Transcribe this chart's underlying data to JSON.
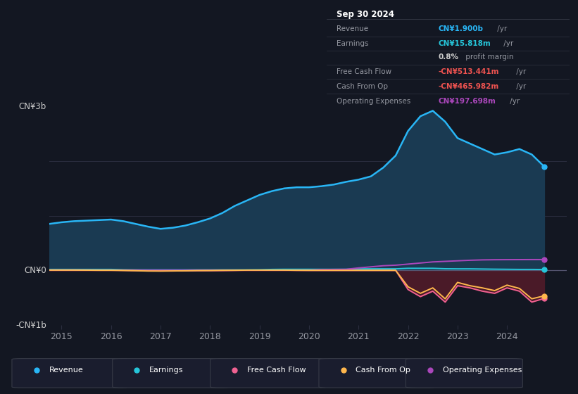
{
  "bg_color": "#131722",
  "plot_bg_color": "#131722",
  "years": [
    2014.75,
    2015.0,
    2015.25,
    2015.5,
    2015.75,
    2016.0,
    2016.25,
    2016.5,
    2016.75,
    2017.0,
    2017.25,
    2017.5,
    2017.75,
    2018.0,
    2018.25,
    2018.5,
    2018.75,
    2019.0,
    2019.25,
    2019.5,
    2019.75,
    2020.0,
    2020.25,
    2020.5,
    2020.75,
    2021.0,
    2021.25,
    2021.5,
    2021.75,
    2022.0,
    2022.25,
    2022.5,
    2022.75,
    2023.0,
    2023.25,
    2023.5,
    2023.75,
    2024.0,
    2024.25,
    2024.5,
    2024.75
  ],
  "revenue": [
    0.85,
    0.88,
    0.9,
    0.91,
    0.92,
    0.93,
    0.9,
    0.85,
    0.8,
    0.76,
    0.78,
    0.82,
    0.88,
    0.95,
    1.05,
    1.18,
    1.28,
    1.38,
    1.45,
    1.5,
    1.52,
    1.52,
    1.54,
    1.57,
    1.62,
    1.66,
    1.72,
    1.88,
    2.1,
    2.55,
    2.82,
    2.92,
    2.72,
    2.42,
    2.32,
    2.22,
    2.12,
    2.16,
    2.22,
    2.12,
    1.9
  ],
  "earnings": [
    0.018,
    0.018,
    0.018,
    0.018,
    0.018,
    0.018,
    0.012,
    0.01,
    0.01,
    0.01,
    0.01,
    0.01,
    0.01,
    0.01,
    0.01,
    0.01,
    0.01,
    0.012,
    0.018,
    0.02,
    0.02,
    0.02,
    0.02,
    0.02,
    0.02,
    0.028,
    0.028,
    0.028,
    0.028,
    0.038,
    0.038,
    0.038,
    0.03,
    0.028,
    0.028,
    0.025,
    0.022,
    0.02,
    0.018,
    0.018,
    0.016
  ],
  "free_cash_flow": [
    0.008,
    0.008,
    0.008,
    0.007,
    0.005,
    0.005,
    0.002,
    -0.003,
    -0.008,
    -0.01,
    -0.01,
    -0.008,
    -0.005,
    -0.004,
    -0.003,
    0.001,
    0.004,
    0.004,
    0.004,
    0.004,
    0.002,
    0.001,
    0.001,
    0.001,
    0.001,
    0.001,
    0.001,
    0.001,
    0.001,
    -0.35,
    -0.48,
    -0.38,
    -0.58,
    -0.28,
    -0.32,
    -0.38,
    -0.42,
    -0.32,
    -0.38,
    -0.58,
    -0.513
  ],
  "cash_from_op": [
    0.005,
    0.005,
    0.005,
    0.004,
    0.002,
    0.002,
    -0.002,
    -0.006,
    -0.012,
    -0.013,
    -0.01,
    -0.008,
    -0.004,
    -0.003,
    0.001,
    0.002,
    0.005,
    0.005,
    0.005,
    0.005,
    0.002,
    0.001,
    0.001,
    0.001,
    0.001,
    0.001,
    0.001,
    0.001,
    0.001,
    -0.3,
    -0.42,
    -0.32,
    -0.52,
    -0.22,
    -0.28,
    -0.32,
    -0.37,
    -0.27,
    -0.33,
    -0.52,
    -0.466
  ],
  "operating_expenses": [
    0.004,
    0.004,
    0.004,
    0.004,
    0.004,
    0.004,
    0.004,
    0.004,
    0.004,
    0.004,
    0.004,
    0.004,
    0.004,
    0.004,
    0.004,
    0.004,
    0.004,
    0.004,
    0.004,
    0.004,
    0.004,
    0.004,
    0.015,
    0.018,
    0.02,
    0.045,
    0.065,
    0.085,
    0.095,
    0.115,
    0.135,
    0.155,
    0.165,
    0.175,
    0.185,
    0.192,
    0.195,
    0.196,
    0.197,
    0.198,
    0.198
  ],
  "ylim": [
    -1.0,
    3.0
  ],
  "xlim": [
    2014.75,
    2025.2
  ],
  "xticks": [
    2015,
    2016,
    2017,
    2018,
    2019,
    2020,
    2021,
    2022,
    2023,
    2024
  ],
  "ytick_labels": [
    [
      "CN¥3b",
      3.0
    ],
    [
      "CN¥0",
      0.0
    ],
    [
      "-CN¥1b",
      -1.0
    ]
  ],
  "revenue_color": "#29b6f6",
  "revenue_fill": "#1a3a52",
  "earnings_color": "#26c6da",
  "fcf_color": "#f06292",
  "cfo_color": "#ffb74d",
  "opex_color": "#ab47bc",
  "neg_fill_color": "#4a1a28",
  "grid_color": "#2a2d3e",
  "zero_line_color": "#555570",
  "text_color": "#9598a1",
  "tick_color": "#9598a1",
  "box_bg": "#000000",
  "box_border": "#363a46",
  "box_date": "Sep 30 2024",
  "box_rows": [
    {
      "label": "Revenue",
      "value": "CN¥1.900b",
      "unit": " /yr",
      "vcol": "#29b6f6"
    },
    {
      "label": "Earnings",
      "value": "CN¥15.818m",
      "unit": " /yr",
      "vcol": "#26c6da"
    },
    {
      "label": "",
      "value": "0.8%",
      "unit": " profit margin",
      "vcol": "#cccccc"
    },
    {
      "label": "Free Cash Flow",
      "value": "-CN¥513.441m",
      "unit": " /yr",
      "vcol": "#ef5350"
    },
    {
      "label": "Cash From Op",
      "value": "-CN¥465.982m",
      "unit": " /yr",
      "vcol": "#ef5350"
    },
    {
      "label": "Operating Expenses",
      "value": "CN¥197.698m",
      "unit": " /yr",
      "vcol": "#ab47bc"
    }
  ],
  "legend_items": [
    {
      "label": "Revenue",
      "color": "#29b6f6"
    },
    {
      "label": "Earnings",
      "color": "#26c6da"
    },
    {
      "label": "Free Cash Flow",
      "color": "#f06292"
    },
    {
      "label": "Cash From Op",
      "color": "#ffb74d"
    },
    {
      "label": "Operating Expenses",
      "color": "#ab47bc"
    }
  ]
}
